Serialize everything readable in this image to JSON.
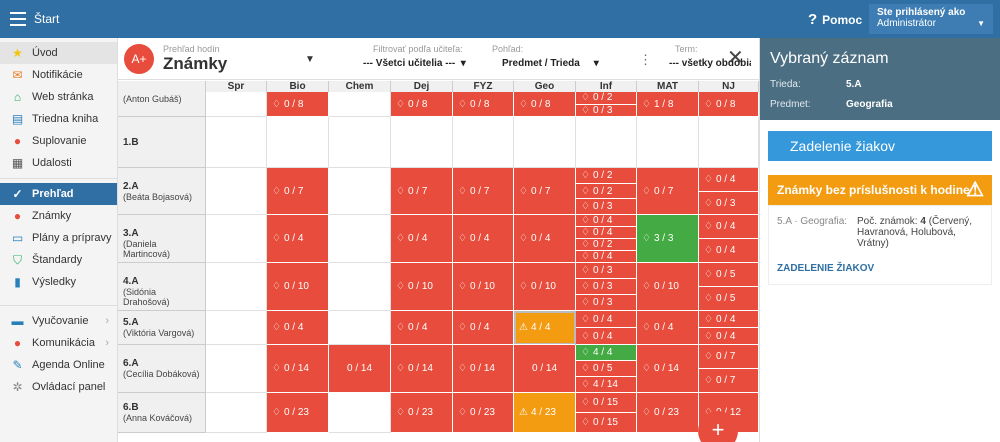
{
  "topbar": {
    "title": "Štart",
    "help": "Pomoc",
    "user_line1": "Ste prihlásený ako",
    "user_line2": "Administrátor"
  },
  "sidebar": {
    "group1": [
      {
        "label": "Úvod",
        "icon": "star-icon",
        "name": "sidebar-item-uvod",
        "state": "hl"
      },
      {
        "label": "Notifikácie",
        "icon": "envelope-icon",
        "name": "sidebar-item-notifikacie"
      },
      {
        "label": "Web stránka",
        "icon": "home-icon",
        "name": "sidebar-item-web-stranka"
      },
      {
        "label": "Triedna kniha",
        "icon": "book-icon",
        "name": "sidebar-item-triedna-kniha"
      },
      {
        "label": "Suplovanie",
        "icon": "person-icon",
        "name": "sidebar-item-suplovanie"
      },
      {
        "label": "Udalosti",
        "icon": "calendar-icon",
        "name": "sidebar-item-udalosti"
      }
    ],
    "group2": [
      {
        "label": "Prehľad",
        "icon": "check-circle-icon",
        "name": "sidebar-item-prehlad",
        "state": "active"
      },
      {
        "label": "Známky",
        "icon": "grade-icon",
        "name": "sidebar-item-znamky"
      },
      {
        "label": "Plány a prípravy",
        "icon": "board-icon",
        "name": "sidebar-item-plany"
      },
      {
        "label": "Štandardy",
        "icon": "shield-icon",
        "name": "sidebar-item-standardy"
      },
      {
        "label": "Výsledky",
        "icon": "bar-chart-icon",
        "name": "sidebar-item-vysledky"
      }
    ],
    "group3": [
      {
        "label": "Vyučovanie",
        "icon": "briefcase-icon",
        "name": "sidebar-item-vyucovanie",
        "chevron": true
      },
      {
        "label": "Komunikácia",
        "icon": "chat-icon",
        "name": "sidebar-item-komunikacia",
        "chevron": true
      },
      {
        "label": "Agenda Online",
        "icon": "pen-icon",
        "name": "sidebar-item-agenda-online"
      },
      {
        "label": "Ovládací panel",
        "icon": "cog-icon",
        "name": "sidebar-item-ovladaci-panel"
      }
    ]
  },
  "toolbar": {
    "subtitle": "Prehľad hodín",
    "title": "Známky",
    "logo": "A+",
    "filter_label": "Filtrovať podľa učiteľa:",
    "filter_value": "--- Všetci učitelia ---",
    "view_label": "Pohľad:",
    "view_value": "Predmet / Trieda",
    "term_label": "Term:",
    "term_value": "--- všetky obdobia ---"
  },
  "grid": {
    "subjects": [
      "Spr",
      "Bio",
      "Chem",
      "Dej",
      "FYZ",
      "Geo",
      "Inf",
      "MAT",
      "NJ"
    ],
    "rows": [
      {
        "cls": "",
        "teacher": "(Anton Gubáš)",
        "cells": [
          {
            "t": "white"
          },
          {
            "t": "red",
            "v": [
              "0 / 8"
            ]
          },
          {
            "t": "white"
          },
          {
            "t": "red",
            "v": [
              "0 / 8"
            ]
          },
          {
            "t": "red",
            "v": [
              "0 / 8"
            ]
          },
          {
            "t": "red",
            "v": [
              "0 / 8"
            ]
          },
          {
            "t": "red",
            "v": [
              "0 / 2",
              "0 / 3"
            ]
          },
          {
            "t": "red",
            "v": [
              "1 / 8"
            ]
          },
          {
            "t": "red",
            "v": [
              "0 / 8"
            ]
          }
        ]
      },
      {
        "cls": "1.B",
        "teacher": "",
        "cells": [
          {
            "t": "white"
          },
          {
            "t": "white"
          },
          {
            "t": "white"
          },
          {
            "t": "white"
          },
          {
            "t": "white"
          },
          {
            "t": "white"
          },
          {
            "t": "white"
          },
          {
            "t": "white"
          },
          {
            "t": "white"
          }
        ]
      },
      {
        "cls": "2.A",
        "teacher": "(Beáta Bojasová)",
        "cells": [
          {
            "t": "white"
          },
          {
            "t": "red",
            "v": [
              "0 / 7"
            ]
          },
          {
            "t": "white"
          },
          {
            "t": "red",
            "v": [
              "0 / 7"
            ]
          },
          {
            "t": "red",
            "v": [
              "0 / 7"
            ]
          },
          {
            "t": "red",
            "v": [
              "0 / 7"
            ]
          },
          {
            "t": "red",
            "v": [
              "0 / 2",
              "0 / 2",
              "0 / 3"
            ]
          },
          {
            "t": "red",
            "v": [
              "0 / 7"
            ]
          },
          {
            "t": "red",
            "v": [
              "0 / 4",
              "0 / 3"
            ]
          }
        ]
      },
      {
        "cls": "3.A",
        "teacher": "(Daniela Martincová)",
        "cells": [
          {
            "t": "white"
          },
          {
            "t": "red",
            "v": [
              "0 / 4"
            ]
          },
          {
            "t": "white"
          },
          {
            "t": "red",
            "v": [
              "0 / 4"
            ]
          },
          {
            "t": "red",
            "v": [
              "0 / 4"
            ]
          },
          {
            "t": "red",
            "v": [
              "0 / 4"
            ]
          },
          {
            "t": "red",
            "v": [
              "0 / 4",
              "0 / 4",
              "0 / 2",
              "0 / 4"
            ]
          },
          {
            "t": "green",
            "v": [
              "3 / 3"
            ]
          },
          {
            "t": "red",
            "v": [
              "0 / 4",
              "0 / 4"
            ]
          }
        ]
      },
      {
        "cls": "4.A",
        "teacher": "(Sidónia Drahošová)",
        "cells": [
          {
            "t": "white"
          },
          {
            "t": "red",
            "v": [
              "0 / 10"
            ]
          },
          {
            "t": "white"
          },
          {
            "t": "red",
            "v": [
              "0 / 10"
            ]
          },
          {
            "t": "red",
            "v": [
              "0 / 10"
            ]
          },
          {
            "t": "red",
            "v": [
              "0 / 10"
            ]
          },
          {
            "t": "red",
            "v": [
              "0 / 3",
              "0 / 3",
              "0 / 3"
            ]
          },
          {
            "t": "red",
            "v": [
              "0 / 10"
            ]
          },
          {
            "t": "red",
            "v": [
              "0 / 5",
              "0 / 5"
            ]
          }
        ]
      },
      {
        "cls": "5.A",
        "teacher": "(Viktória Vargová)",
        "cells": [
          {
            "t": "white"
          },
          {
            "t": "red",
            "v": [
              "0 / 4"
            ]
          },
          {
            "t": "white"
          },
          {
            "t": "red",
            "v": [
              "0 / 4"
            ]
          },
          {
            "t": "red",
            "v": [
              "0 / 4"
            ]
          },
          {
            "t": "orange",
            "v": [
              "4 / 4"
            ],
            "warn": true,
            "sel": true
          },
          {
            "t": "red",
            "v": [
              "0 / 4",
              "0 / 4"
            ]
          },
          {
            "t": "red",
            "v": [
              "0 / 4"
            ]
          },
          {
            "t": "red",
            "v": [
              "0 / 4",
              "0 / 4"
            ]
          }
        ]
      },
      {
        "cls": "6.A",
        "teacher": "(Cecília Dobáková)",
        "cells": [
          {
            "t": "white"
          },
          {
            "t": "red",
            "v": [
              "0 / 14"
            ]
          },
          {
            "t": "red",
            "v": [
              "0 / 14"
            ],
            "nobell": true
          },
          {
            "t": "red",
            "v": [
              "0 / 14"
            ]
          },
          {
            "t": "red",
            "v": [
              "0 / 14"
            ]
          },
          {
            "t": "red",
            "v": [
              "0 / 14"
            ],
            "nobell": true
          },
          {
            "t": "red",
            "v": [
              "4 / 4",
              "0 / 5",
              "4 / 14"
            ],
            "green0": true
          },
          {
            "t": "red",
            "v": [
              "0 / 14"
            ]
          },
          {
            "t": "red",
            "v": [
              "0 / 7",
              "0 / 7"
            ]
          }
        ]
      },
      {
        "cls": "6.B",
        "teacher": "(Anna Kováčová)",
        "cells": [
          {
            "t": "white"
          },
          {
            "t": "red",
            "v": [
              "0 / 23"
            ]
          },
          {
            "t": "white"
          },
          {
            "t": "red",
            "v": [
              "0 / 23"
            ]
          },
          {
            "t": "red",
            "v": [
              "0 / 23"
            ]
          },
          {
            "t": "orange",
            "v": [
              "4 / 23"
            ],
            "warn": true
          },
          {
            "t": "red",
            "v": [
              "0 / 15",
              "0 / 15"
            ]
          },
          {
            "t": "red",
            "v": [
              "0 / 23"
            ]
          },
          {
            "t": "red",
            "v": [
              "0 / 12"
            ]
          }
        ]
      }
    ]
  },
  "stray_text": "4",
  "fab_label": "+",
  "rpanel": {
    "title": "Vybraný záznam",
    "trieda_key": "Trieda:",
    "trieda_val": "5.A",
    "predmet_key": "Predmet:",
    "predmet_val": "Geografia",
    "button": "Zadelenie žiakov",
    "warn_title": "Známky bez príslušnosti k hodine",
    "item_class": "5.A · Geografia:",
    "item_desc_prefix": "Poč. známok: ",
    "item_count": "4",
    "item_names": " (Červený, Havranová, Holubová, Vrátny)",
    "link": "ZADELENIE ŽIAKOV"
  },
  "colors": {
    "red": "#e74c3c",
    "green": "#44aa44",
    "orange": "#f39c12",
    "topbar": "#2f6fa3",
    "blue_button": "#3498db"
  }
}
